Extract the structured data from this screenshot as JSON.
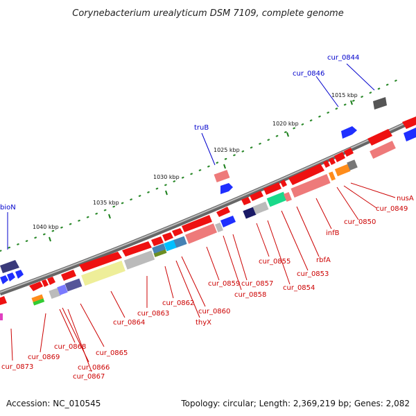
{
  "title": "Corynebacterium urealyticum DSM 7109, complete genome",
  "footer": {
    "accession": "Accession: NC_010545",
    "topology": "Topology: circular; Length: 2,369,219 bp; Genes: 2,082"
  },
  "colors": {
    "forward_gene": "#e41a1c",
    "reverse_gene": "#1f1fe0",
    "label_red": "#cc0000",
    "label_blue": "#0000cc",
    "backbone": "#888888",
    "tick": "#1b7f1b"
  },
  "scale": {
    "ticks": [
      "1015 kbp",
      "1020 kbp",
      "1025 kbp",
      "1030 kbp",
      "1035 kbp",
      "1040 kbp"
    ]
  },
  "blue_labels": [
    "cur_0844",
    "cur_0846",
    "truB",
    "bioN"
  ],
  "red_labels": [
    "nusA",
    "cur_0849",
    "cur_0850",
    "infB",
    "rbfA",
    "cur_0853",
    "cur_0854",
    "cur_0855",
    "cur_0857",
    "cur_0858",
    "cur_0859",
    "cur_0860",
    "thyX",
    "cur_0862",
    "cur_0863",
    "cur_0864",
    "cur_0865",
    "cur_0866",
    "cur_0867",
    "cur_0868",
    "cur_0869",
    "cur_0873"
  ]
}
